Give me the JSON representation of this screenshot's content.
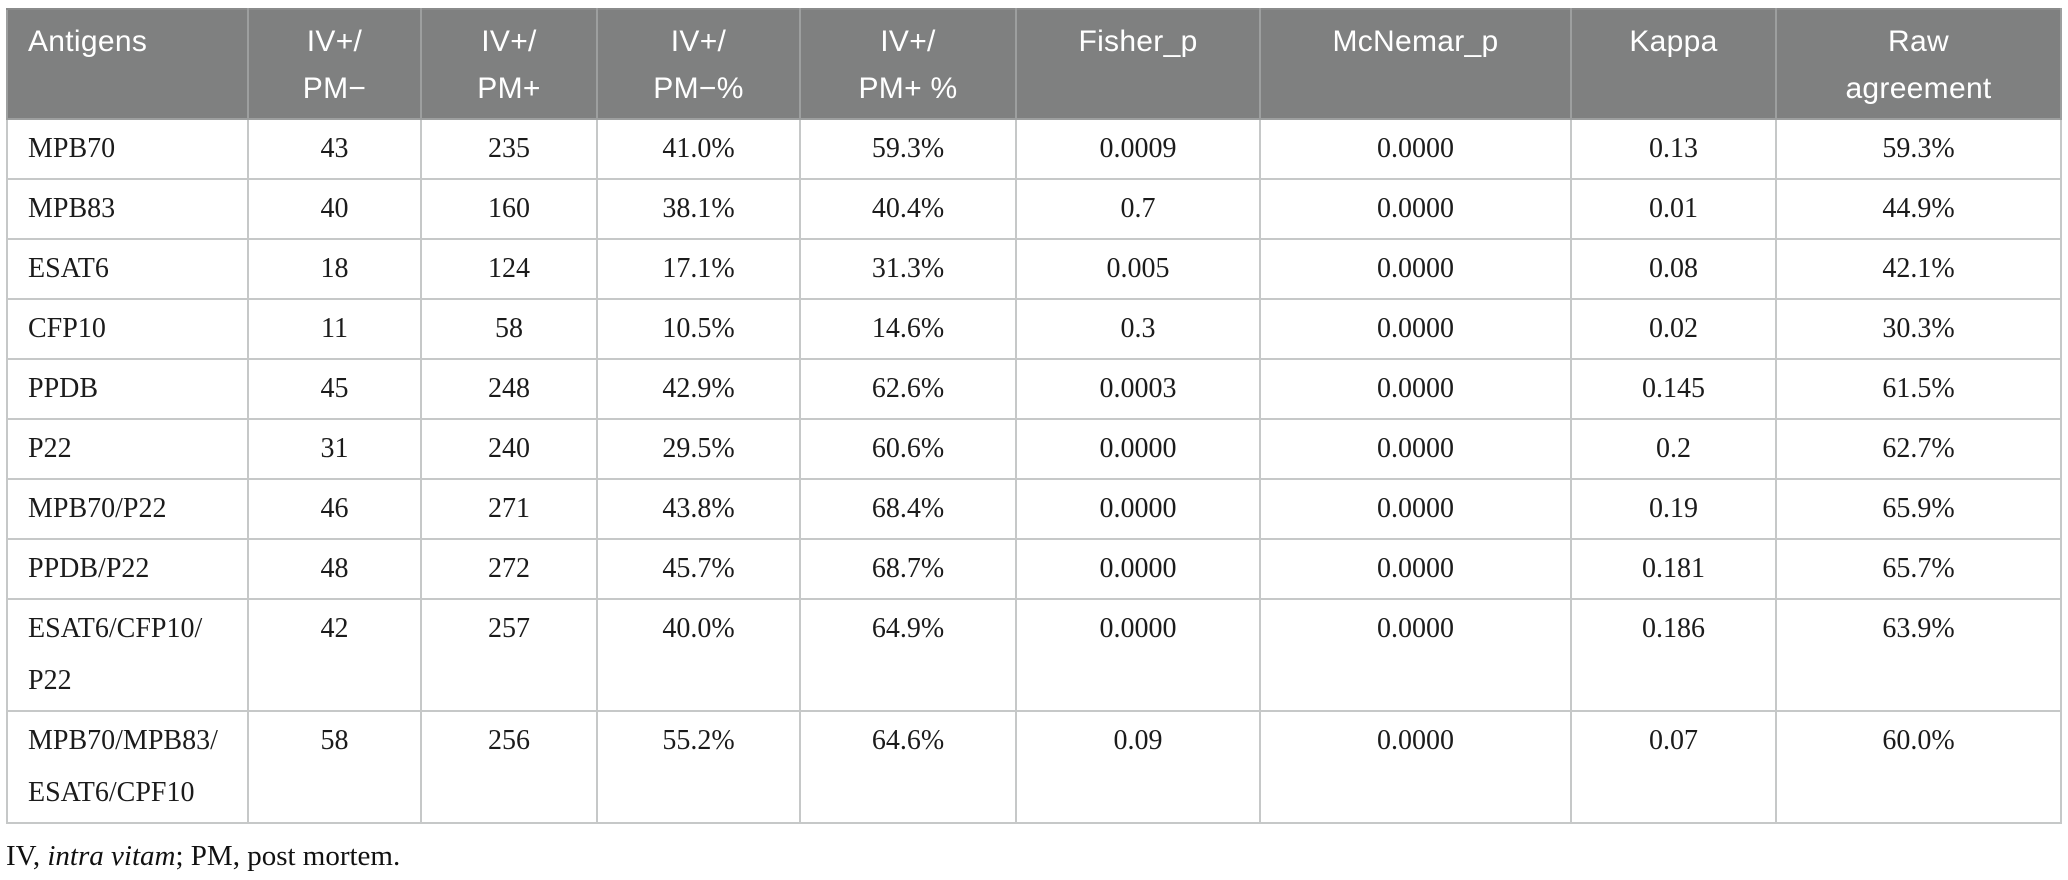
{
  "colors": {
    "header_bg": "#7f8080",
    "header_text": "#ffffff",
    "body_text": "#1b1b1b",
    "grid_border": "#c6c8c8"
  },
  "table": {
    "columns": [
      {
        "id": "antigens",
        "lines": [
          "Antigens"
        ],
        "align": "left"
      },
      {
        "id": "iv-pos-pm-neg",
        "lines": [
          "IV+/",
          "PM−"
        ],
        "align": "center"
      },
      {
        "id": "iv-pos-pm-pos",
        "lines": [
          "IV+/",
          "PM+"
        ],
        "align": "center"
      },
      {
        "id": "iv-pos-pm-neg-pct",
        "lines": [
          "IV+/",
          "PM−%"
        ],
        "align": "center"
      },
      {
        "id": "iv-pos-pm-pos-pct",
        "lines": [
          "IV+/",
          "PM+ %"
        ],
        "align": "center"
      },
      {
        "id": "fisher-p",
        "lines": [
          "Fisher_p"
        ],
        "align": "center"
      },
      {
        "id": "mcnemar-p",
        "lines": [
          "McNemar_p"
        ],
        "align": "center"
      },
      {
        "id": "kappa",
        "lines": [
          "Kappa"
        ],
        "align": "center"
      },
      {
        "id": "raw-agreement",
        "lines": [
          "Raw",
          "agreement"
        ],
        "align": "center"
      }
    ],
    "rows": [
      {
        "antigen": [
          "MPB70"
        ],
        "values": [
          "43",
          "235",
          "41.0%",
          "59.3%",
          "0.0009",
          "0.0000",
          "0.13",
          "59.3%"
        ]
      },
      {
        "antigen": [
          "MPB83"
        ],
        "values": [
          "40",
          "160",
          "38.1%",
          "40.4%",
          "0.7",
          "0.0000",
          "0.01",
          "44.9%"
        ]
      },
      {
        "antigen": [
          "ESAT6"
        ],
        "values": [
          "18",
          "124",
          "17.1%",
          "31.3%",
          "0.005",
          "0.0000",
          "0.08",
          "42.1%"
        ]
      },
      {
        "antigen": [
          "CFP10"
        ],
        "values": [
          "11",
          "58",
          "10.5%",
          "14.6%",
          "0.3",
          "0.0000",
          "0.02",
          "30.3%"
        ]
      },
      {
        "antigen": [
          "PPDB"
        ],
        "values": [
          "45",
          "248",
          "42.9%",
          "62.6%",
          "0.0003",
          "0.0000",
          "0.145",
          "61.5%"
        ]
      },
      {
        "antigen": [
          "P22"
        ],
        "values": [
          "31",
          "240",
          "29.5%",
          "60.6%",
          "0.0000",
          "0.0000",
          "0.2",
          "62.7%"
        ]
      },
      {
        "antigen": [
          "MPB70/P22"
        ],
        "values": [
          "46",
          "271",
          "43.8%",
          "68.4%",
          "0.0000",
          "0.0000",
          "0.19",
          "65.9%"
        ]
      },
      {
        "antigen": [
          "PPDB/P22"
        ],
        "values": [
          "48",
          "272",
          "45.7%",
          "68.7%",
          "0.0000",
          "0.0000",
          "0.181",
          "65.7%"
        ]
      },
      {
        "antigen": [
          "ESAT6/CFP10/",
          "P22"
        ],
        "values": [
          "42",
          "257",
          "40.0%",
          "64.9%",
          "0.0000",
          "0.0000",
          "0.186",
          "63.9%"
        ]
      },
      {
        "antigen": [
          "MPB70/MPB83/",
          "ESAT6/CPF10"
        ],
        "values": [
          "58",
          "256",
          "55.2%",
          "64.6%",
          "0.09",
          "0.0000",
          "0.07",
          "60.0%"
        ]
      }
    ]
  },
  "footnote": {
    "pre": "IV, ",
    "italic": "intra vitam",
    "post": "; PM, post mortem."
  }
}
